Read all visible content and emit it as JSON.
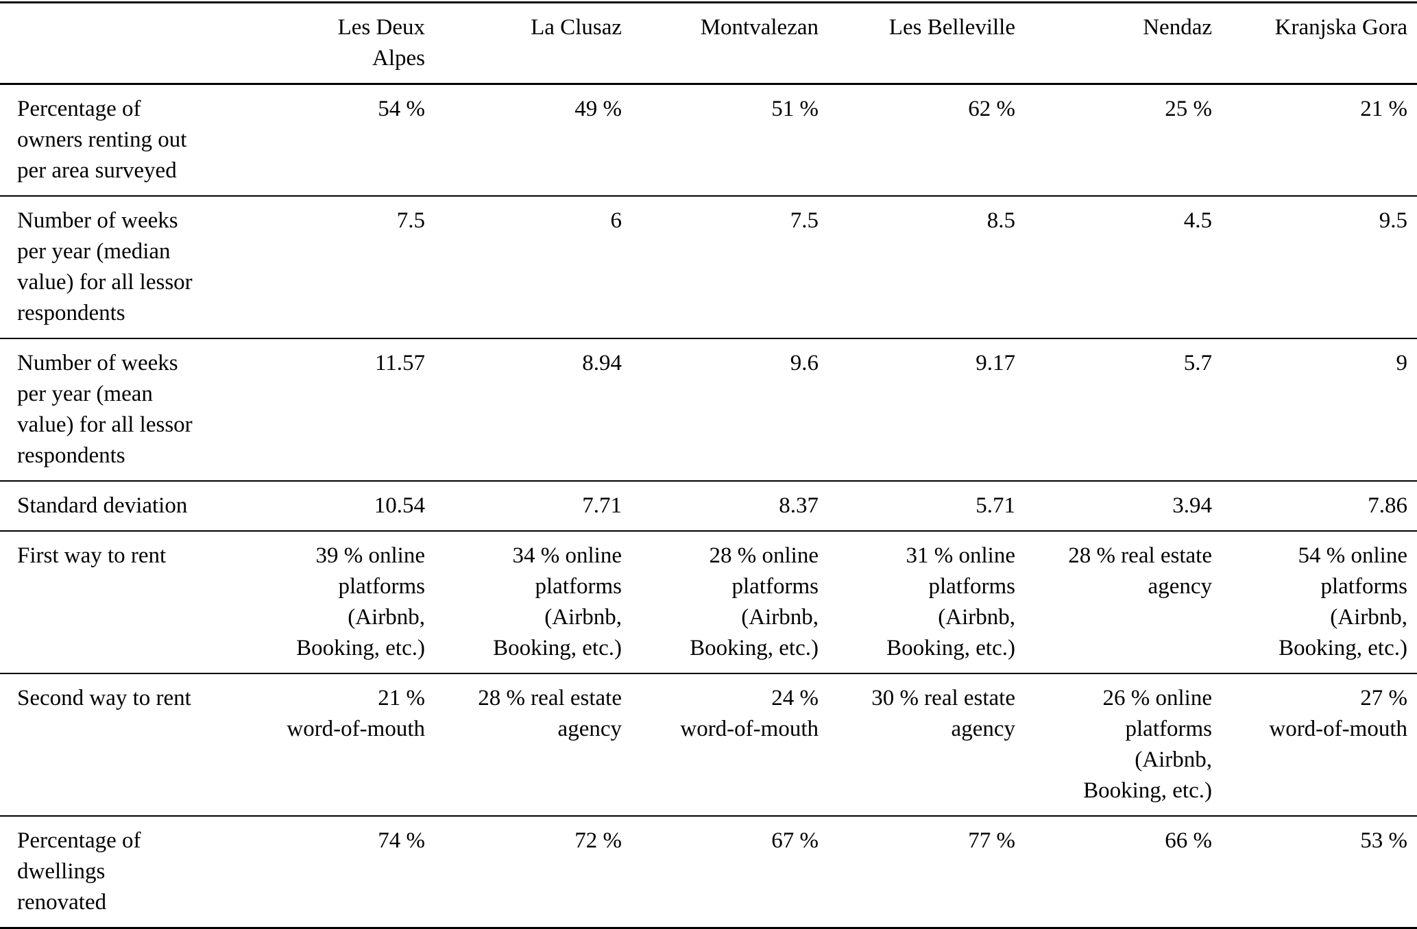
{
  "colors": {
    "background": "#ffffff",
    "text": "#000000",
    "rule": "#000000"
  },
  "table": {
    "corner_label": "",
    "columns": [
      "Les Deux\nAlpes",
      "La Clusaz",
      "Montvalezan",
      "Les Belleville",
      "Nendaz",
      "Kranjska Gora"
    ],
    "rows": [
      {
        "label": "Percentage of\nowners renting out\nper area surveyed",
        "cells": [
          "54 %",
          "49 %",
          "51 %",
          "62 %",
          "25 %",
          "21 %"
        ]
      },
      {
        "label": "Number of weeks\nper year (median\nvalue) for all lessor\nrespondents",
        "cells": [
          "7.5",
          "6",
          "7.5",
          "8.5",
          "4.5",
          "9.5"
        ]
      },
      {
        "label": "Number of weeks\nper year (mean\nvalue) for all lessor\nrespondents",
        "cells": [
          "11.57",
          "8.94",
          "9.6",
          "9.17",
          "5.7",
          "9"
        ]
      },
      {
        "label": "Standard deviation",
        "cells": [
          "10.54",
          "7.71",
          "8.37",
          "5.71",
          "3.94",
          "7.86"
        ]
      },
      {
        "label": "First way to rent",
        "cells": [
          "39 % online\nplatforms\n(Airbnb,\nBooking, etc.)",
          "34 % online\nplatforms\n(Airbnb,\nBooking, etc.)",
          "28 % online\nplatforms\n(Airbnb,\nBooking, etc.)",
          "31 % online\nplatforms\n(Airbnb,\nBooking, etc.)",
          "28 % real estate\nagency",
          "54 % online\nplatforms\n(Airbnb,\nBooking, etc.)"
        ]
      },
      {
        "label": "Second way to rent",
        "cells": [
          "21 %\nword-of-mouth",
          "28 % real estate\nagency",
          "24 %\nword-of-mouth",
          "30 % real estate\nagency",
          "26 % online\nplatforms\n(Airbnb,\nBooking, etc.)",
          "27 %\nword-of-mouth"
        ]
      },
      {
        "label": "Percentage of\ndwellings\nrenovated",
        "cells": [
          "74 %",
          "72 %",
          "67 %",
          "77 %",
          "66 %",
          "53 %"
        ]
      }
    ]
  }
}
